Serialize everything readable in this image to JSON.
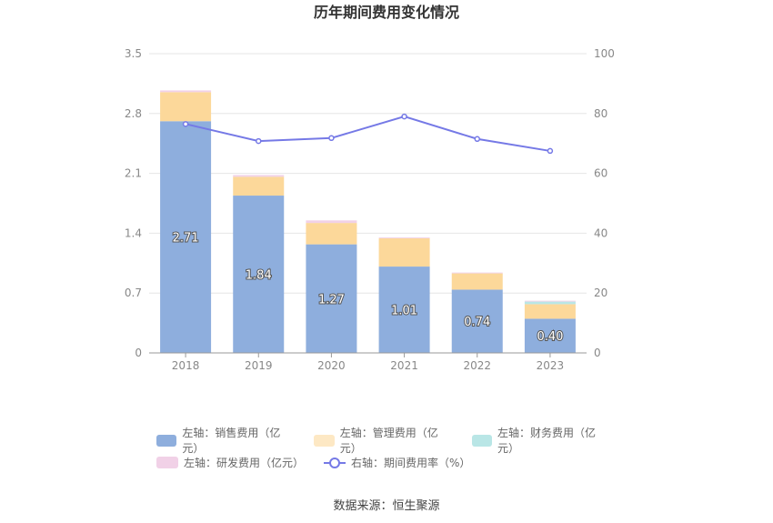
{
  "chart_data": {
    "type": "bar",
    "title": "历年期间费用变化情况",
    "categories": [
      "2018",
      "2019",
      "2020",
      "2021",
      "2022",
      "2023"
    ],
    "left_axis": {
      "ticks": [
        "0",
        "0.7",
        "1.4",
        "2.1",
        "2.8",
        "3.5"
      ],
      "ylim": [
        0,
        3.5
      ]
    },
    "right_axis": {
      "ticks": [
        "0",
        "20",
        "40",
        "60",
        "80",
        "100"
      ],
      "ylim": [
        0,
        100
      ]
    },
    "stacked": true,
    "series": [
      {
        "name": "左轴：销售费用（亿元）",
        "axis": "left",
        "type": "bar",
        "color": "#8eaedd",
        "values": [
          2.71,
          1.84,
          1.27,
          1.01,
          0.74,
          0.4
        ],
        "labels": [
          "2.71",
          "1.84",
          "1.27",
          "1.01",
          "0.74",
          "0.40"
        ]
      },
      {
        "name": "左轴：管理费用（亿元）",
        "axis": "left",
        "type": "bar",
        "color": "#fcd89a",
        "values": [
          0.34,
          0.22,
          0.25,
          0.33,
          0.19,
          0.17
        ]
      },
      {
        "name": "左轴：财务费用（亿元）",
        "axis": "left",
        "type": "bar",
        "color": "#b9e6e6",
        "values": [
          0.0,
          0.0,
          0.0,
          0.0,
          0.0,
          0.03
        ]
      },
      {
        "name": "左轴：研发费用（亿元）",
        "axis": "left",
        "type": "bar",
        "color": "#f1d1e7",
        "values": [
          0.02,
          0.02,
          0.03,
          0.01,
          0.01,
          0.01
        ]
      },
      {
        "name": "右轴：期间费用率（%）",
        "axis": "right",
        "type": "line",
        "color": "#7579e6",
        "values": [
          76.5,
          70.8,
          71.8,
          79.0,
          71.5,
          67.5
        ]
      }
    ],
    "legend_position": "bottom",
    "grid": true
  },
  "source_text": "数据来源：恒生聚源"
}
